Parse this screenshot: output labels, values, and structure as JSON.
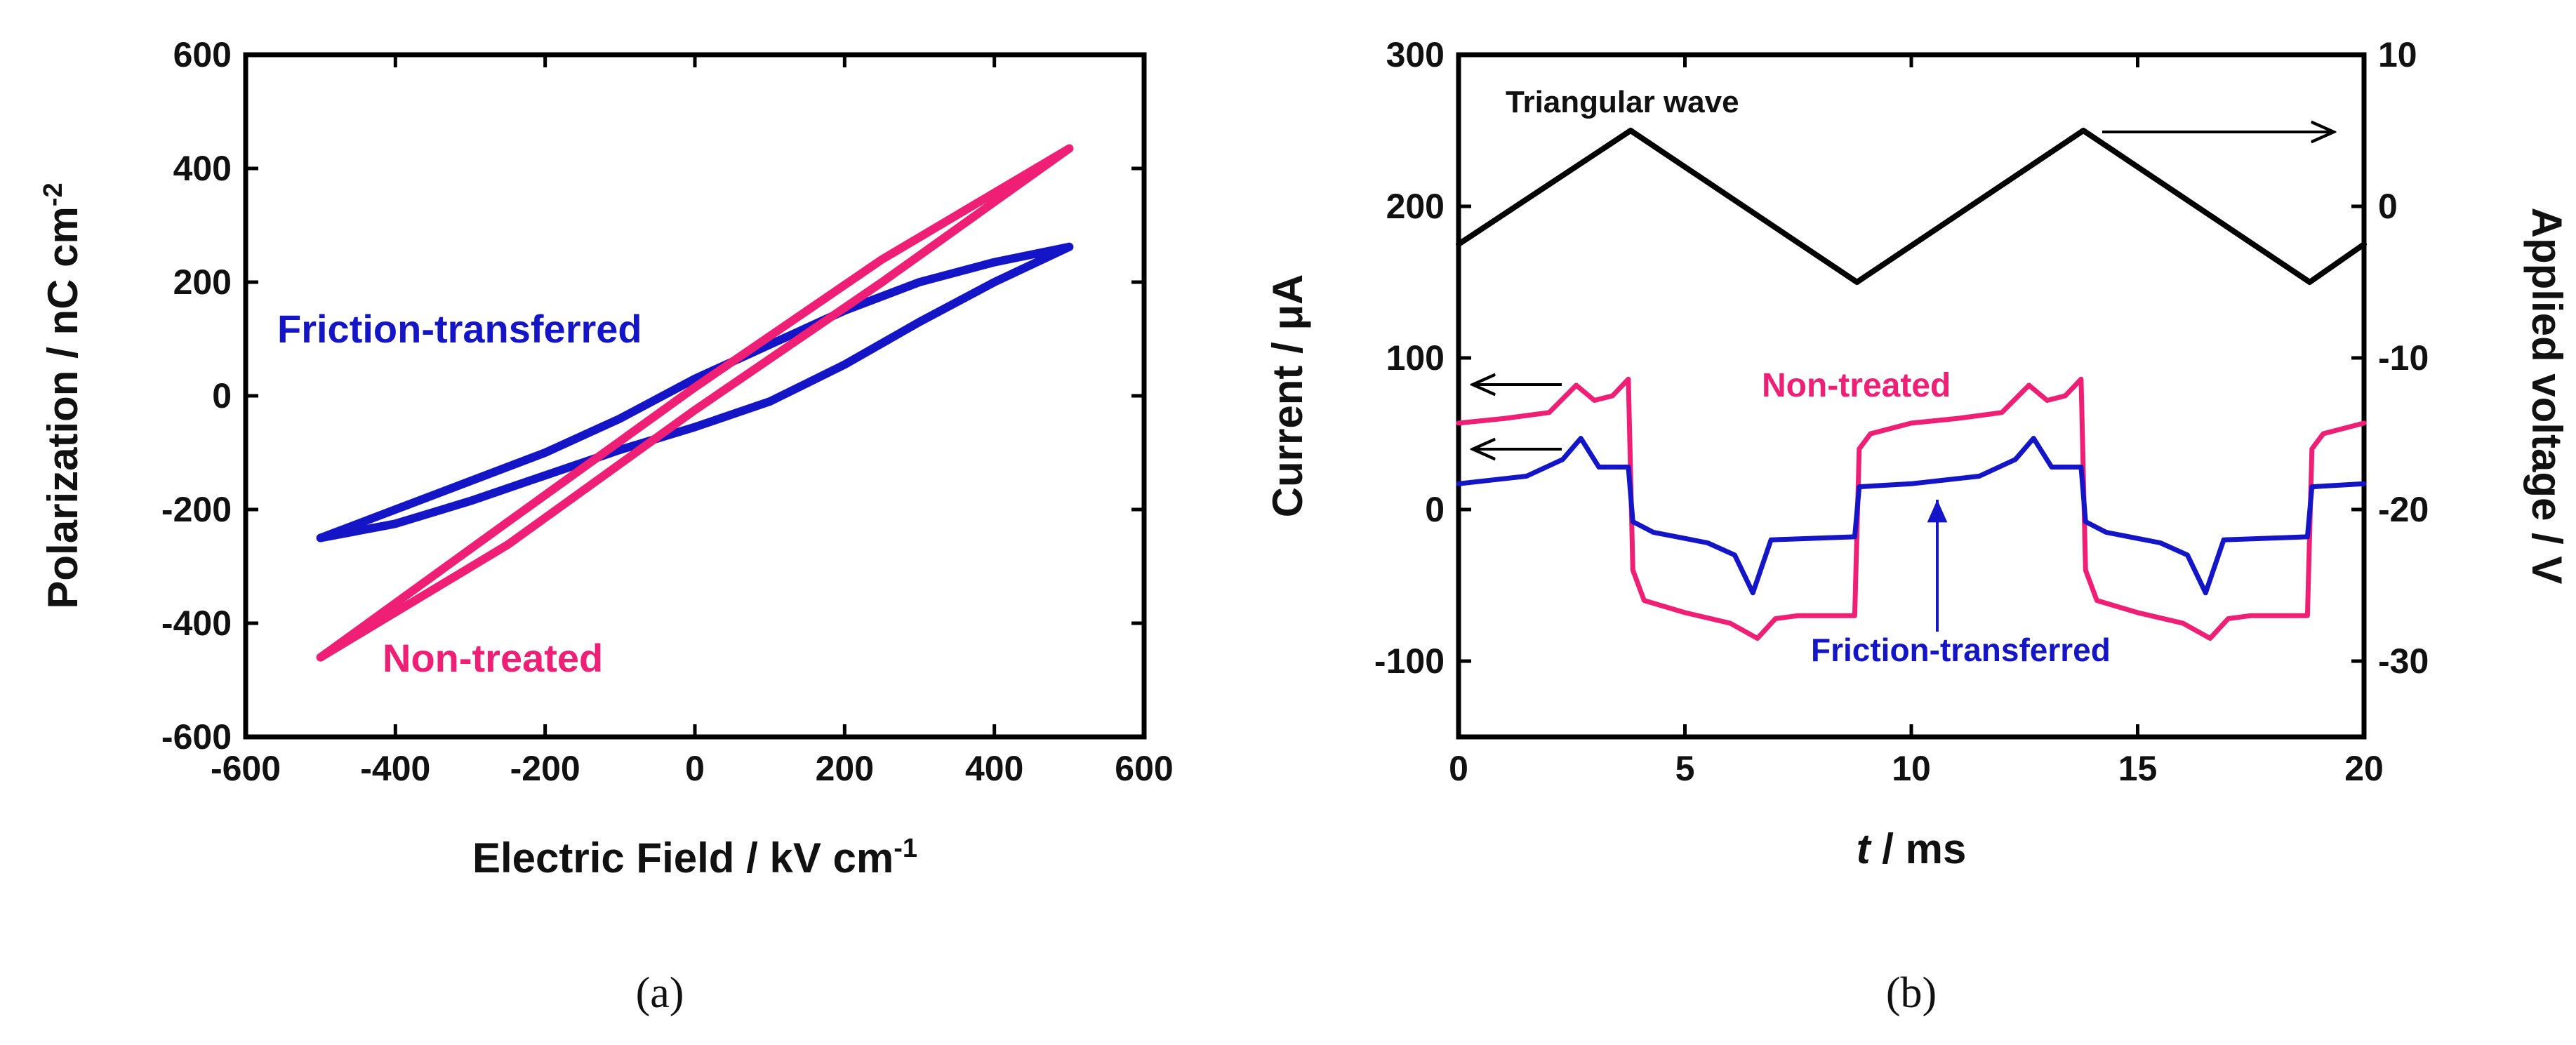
{
  "chart_data": [
    {
      "panel": "a",
      "type": "line",
      "title": "",
      "xlabel": "Electric Field / kV cm",
      "xlabel_sup": "-1",
      "ylabel": "Polarization / nC cm",
      "ylabel_sup": "-2",
      "xlim": [
        -600,
        600
      ],
      "ylim": [
        -600,
        600
      ],
      "xticks": [
        -600,
        -400,
        -200,
        0,
        200,
        400,
        600
      ],
      "yticks": [
        -600,
        -400,
        -200,
        0,
        200,
        400,
        600
      ],
      "grid": false,
      "series": [
        {
          "name": "Friction-transferred",
          "color": "#1515c8",
          "upper": {
            "x": [
              -500,
              -400,
              -300,
              -200,
              -100,
              0,
              100,
              200,
              300,
              400,
              500
            ],
            "y": [
              -250,
              -200,
              -150,
              -100,
              -40,
              30,
              90,
              150,
              200,
              235,
              262
            ]
          },
          "lower": {
            "x": [
              -500,
              -400,
              -300,
              -200,
              -100,
              0,
              100,
              200,
              300,
              400,
              500
            ],
            "y": [
              -250,
              -225,
              -185,
              -140,
              -95,
              -55,
              -10,
              55,
              130,
              200,
              262
            ]
          }
        },
        {
          "name": "Non-treated",
          "color": "#ee1f74",
          "upper": {
            "x": [
              -500,
              -250,
              0,
              250,
              500
            ],
            "y": [
              -460,
              -222,
              15,
              240,
              435
            ]
          },
          "lower": {
            "x": [
              -500,
              -250,
              0,
              250,
              500
            ],
            "y": [
              -460,
              -262,
              -25,
              200,
              435
            ]
          }
        }
      ],
      "annotations": [
        {
          "text": "Friction-transferred",
          "color": "#1515c8"
        },
        {
          "text": "Non-treated",
          "color": "#ee1f74"
        }
      ],
      "caption": "(a)"
    },
    {
      "panel": "b",
      "type": "line",
      "title": "",
      "xlabel_t": "t",
      "xlabel_rest": " / ms",
      "ylabel_left": "Current / μA",
      "ylabel_right": "Applied voltage / V",
      "xlim": [
        0,
        20
      ],
      "ylim_left": [
        -150,
        300
      ],
      "ylim_right": [
        -35,
        10
      ],
      "xticks": [
        0,
        5,
        10,
        15,
        20
      ],
      "yticks_left": [
        -100,
        0,
        100,
        200,
        300
      ],
      "yticks_right": [
        -30,
        -20,
        -10,
        0,
        10
      ],
      "grid": false,
      "series": [
        {
          "name": "Triangular wave",
          "axis": "right",
          "color": "#000000",
          "x": [
            0,
            3.8,
            8.8,
            13.8,
            18.8,
            20
          ],
          "y": [
            -2.5,
            5,
            -5,
            5,
            -5,
            -2.5
          ]
        },
        {
          "name": "Non-treated",
          "axis": "left",
          "color": "#ee1f74",
          "x": [
            0,
            1,
            2,
            2.6,
            3.0,
            3.4,
            3.75,
            3.85,
            4.1,
            5,
            6,
            6.6,
            7.0,
            7.5,
            8.75,
            8.85,
            9.1,
            10,
            11,
            12,
            12.6,
            13.0,
            13.4,
            13.75,
            13.85,
            14.1,
            15,
            16,
            16.6,
            17.0,
            17.5,
            18.75,
            18.85,
            19.1,
            20
          ],
          "y": [
            57,
            60,
            64,
            82,
            72,
            75,
            86,
            -40,
            -60,
            -68,
            -75,
            -85,
            -72,
            -70,
            -70,
            40,
            50,
            57,
            60,
            64,
            82,
            72,
            75,
            86,
            -40,
            -60,
            -68,
            -75,
            -85,
            -72,
            -70,
            -70,
            40,
            50,
            57
          ]
        },
        {
          "name": "Friction-transferred",
          "axis": "left",
          "color": "#1515c8",
          "x": [
            0,
            1.5,
            2.3,
            2.7,
            3.1,
            3.75,
            3.85,
            4.3,
            5.5,
            6.1,
            6.5,
            6.9,
            8.75,
            8.85,
            10,
            11.5,
            12.3,
            12.7,
            13.1,
            13.75,
            13.85,
            14.3,
            15.5,
            16.1,
            16.5,
            16.9,
            18.75,
            18.85,
            20
          ],
          "y": [
            17,
            22,
            33,
            47,
            28,
            28,
            -8,
            -15,
            -22,
            -30,
            -55,
            -20,
            -18,
            15,
            17,
            22,
            33,
            47,
            28,
            28,
            -8,
            -15,
            -22,
            -30,
            -55,
            -20,
            -18,
            15,
            17
          ]
        }
      ],
      "annotations": [
        {
          "text": "Triangular wave",
          "color": "#000000"
        },
        {
          "text": "Non-treated",
          "color": "#ee1f74"
        },
        {
          "text": "Friction-transferred",
          "color": "#1515c8"
        }
      ],
      "caption": "(b)"
    }
  ]
}
